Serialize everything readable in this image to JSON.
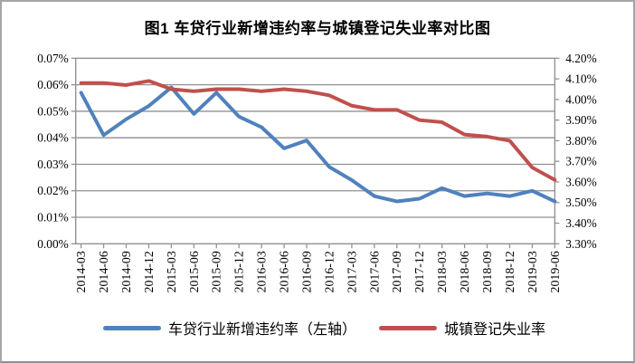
{
  "chart_data": {
    "type": "line",
    "title": "图1 车贷行业新增违约率与城镇登记失业率对比图",
    "categories": [
      "2014-03",
      "2014-06",
      "2014-09",
      "2014-12",
      "2015-03",
      "2015-06",
      "2015-09",
      "2015-12",
      "2016-03",
      "2016-06",
      "2016-09",
      "2016-12",
      "2017-03",
      "2017-06",
      "2017-09",
      "2017-12",
      "2018-03",
      "2018-06",
      "2018-09",
      "2018-12",
      "2019-03",
      "2019-06"
    ],
    "series": [
      {
        "name": "车贷行业新增违约率（左轴）",
        "axis": "left",
        "color": "#4F81BD",
        "values": [
          0.057,
          0.041,
          0.047,
          0.052,
          0.059,
          0.049,
          0.057,
          0.048,
          0.044,
          0.036,
          0.039,
          0.029,
          0.024,
          0.018,
          0.016,
          0.017,
          0.021,
          0.018,
          0.019,
          0.018,
          0.02,
          0.016
        ]
      },
      {
        "name": "城镇登记失业率",
        "axis": "right",
        "color": "#C0504D",
        "values": [
          4.08,
          4.08,
          4.07,
          4.09,
          4.05,
          4.04,
          4.05,
          4.05,
          4.04,
          4.05,
          4.04,
          4.02,
          3.97,
          3.95,
          3.95,
          3.9,
          3.89,
          3.83,
          3.82,
          3.8,
          3.67,
          3.61
        ]
      }
    ],
    "left_axis": {
      "min": 0.0,
      "max": 0.07,
      "step": 0.01,
      "tick_labels": [
        "0.00%",
        "0.01%",
        "0.02%",
        "0.03%",
        "0.04%",
        "0.05%",
        "0.06%",
        "0.07%"
      ]
    },
    "right_axis": {
      "min": 3.3,
      "max": 4.2,
      "step": 0.1,
      "tick_labels": [
        "3.30%",
        "3.40%",
        "3.50%",
        "3.60%",
        "3.70%",
        "3.80%",
        "3.90%",
        "4.00%",
        "4.10%",
        "4.20%"
      ]
    },
    "grid": "horizontal",
    "legend_position": "bottom",
    "colors": {
      "series_blue": "#4F81BD",
      "series_red": "#C0504D",
      "gridline": "#919191",
      "axis_text": "#000000",
      "panel_border": "#a6a6a6",
      "background": "#ffffff"
    }
  }
}
